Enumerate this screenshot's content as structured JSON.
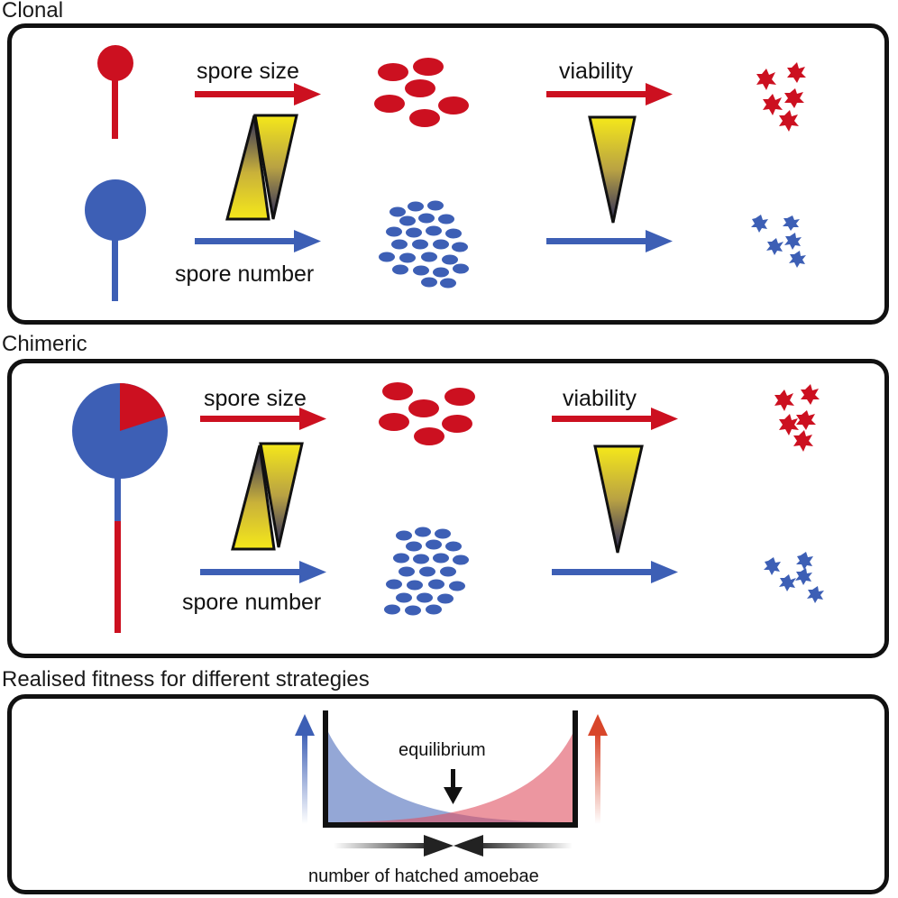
{
  "panels": {
    "clonal": {
      "title": "Clonal",
      "spore_size_label": "spore size",
      "spore_number_label": "spore number",
      "viability_label": "viability"
    },
    "chimeric": {
      "title": "Chimeric",
      "spore_size_label": "spore size",
      "spore_number_label": "spore number",
      "viability_label": "viability",
      "fruiting_body_red_fraction": 0.2
    },
    "fitness": {
      "title": "Realised fitness for different strategies",
      "equilibrium_label": "equilibrium",
      "axis_label": "number of hatched amoebae"
    }
  },
  "colors": {
    "red": "#cc1020",
    "blue": "#3d5fb5",
    "yellow": "#f5e81a",
    "navy": "#2a2a5c",
    "outline": "#111111"
  }
}
